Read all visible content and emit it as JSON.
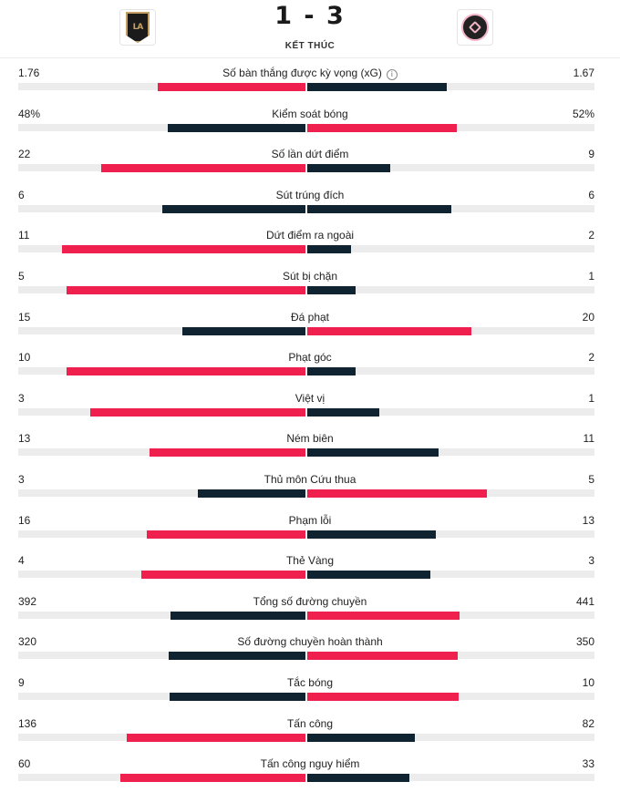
{
  "header": {
    "home_logo": "lafc-crest",
    "away_logo": "inter-miami-crest",
    "score": "1 - 3",
    "status": "KẾT THÚC"
  },
  "colors": {
    "red": "#f0204e",
    "dark": "#102330",
    "track": "#ececec"
  },
  "stats": [
    {
      "label": "Số bàn thắng được kỳ vọng (xG)",
      "home": "1.76",
      "away": "1.67",
      "home_val": 1.76,
      "away_val": 1.67,
      "info": true,
      "home_color": "red",
      "away_color": "dark"
    },
    {
      "label": "Kiểm soát bóng",
      "home": "48%",
      "away": "52%",
      "home_val": 48,
      "away_val": 52,
      "home_color": "dark",
      "away_color": "red"
    },
    {
      "label": "Số lần dứt điểm",
      "home": "22",
      "away": "9",
      "home_val": 22,
      "away_val": 9,
      "home_color": "red",
      "away_color": "dark"
    },
    {
      "label": "Sút trúng đích",
      "home": "6",
      "away": "6",
      "home_val": 6,
      "away_val": 6,
      "home_color": "dark",
      "away_color": "dark"
    },
    {
      "label": "Dứt điểm ra ngoài",
      "home": "11",
      "away": "2",
      "home_val": 11,
      "away_val": 2,
      "home_color": "red",
      "away_color": "dark"
    },
    {
      "label": "Sút bị chặn",
      "home": "5",
      "away": "1",
      "home_val": 5,
      "away_val": 1,
      "home_color": "red",
      "away_color": "dark"
    },
    {
      "label": "Đá phạt",
      "home": "15",
      "away": "20",
      "home_val": 15,
      "away_val": 20,
      "home_color": "dark",
      "away_color": "red"
    },
    {
      "label": "Phạt góc",
      "home": "10",
      "away": "2",
      "home_val": 10,
      "away_val": 2,
      "home_color": "red",
      "away_color": "dark"
    },
    {
      "label": "Việt vị",
      "home": "3",
      "away": "1",
      "home_val": 3,
      "away_val": 1,
      "home_color": "red",
      "away_color": "dark"
    },
    {
      "label": "Ném biên",
      "home": "13",
      "away": "11",
      "home_val": 13,
      "away_val": 11,
      "home_color": "red",
      "away_color": "dark"
    },
    {
      "label": "Thủ môn Cứu thua",
      "home": "3",
      "away": "5",
      "home_val": 3,
      "away_val": 5,
      "home_color": "dark",
      "away_color": "red"
    },
    {
      "label": "Phạm lỗi",
      "home": "16",
      "away": "13",
      "home_val": 16,
      "away_val": 13,
      "home_color": "red",
      "away_color": "dark"
    },
    {
      "label": "Thẻ Vàng",
      "home": "4",
      "away": "3",
      "home_val": 4,
      "away_val": 3,
      "home_color": "red",
      "away_color": "dark"
    },
    {
      "label": "Tổng số đường chuyền",
      "home": "392",
      "away": "441",
      "home_val": 392,
      "away_val": 441,
      "home_color": "dark",
      "away_color": "red"
    },
    {
      "label": "Số đường chuyền hoàn thành",
      "home": "320",
      "away": "350",
      "home_val": 320,
      "away_val": 350,
      "home_color": "dark",
      "away_color": "red"
    },
    {
      "label": "Tắc bóng",
      "home": "9",
      "away": "10",
      "home_val": 9,
      "away_val": 10,
      "home_color": "dark",
      "away_color": "red"
    },
    {
      "label": "Tấn công",
      "home": "136",
      "away": "82",
      "home_val": 136,
      "away_val": 82,
      "home_color": "red",
      "away_color": "dark"
    },
    {
      "label": "Tấn công nguy hiểm",
      "home": "60",
      "away": "33",
      "home_val": 60,
      "away_val": 33,
      "home_color": "red",
      "away_color": "dark"
    }
  ]
}
